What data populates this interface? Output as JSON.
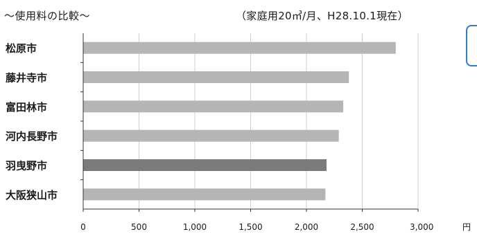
{
  "chart_data": {
    "type": "bar",
    "orientation": "horizontal",
    "title": "〜使用料の比較〜",
    "subtitle": "（家庭用20㎥/月、H28.10.1現在）",
    "categories": [
      "松原市",
      "藤井寺市",
      "富田林市",
      "河内長野市",
      "羽曳野市",
      "大阪狭山市"
    ],
    "values": [
      2800,
      2380,
      2330,
      2290,
      2180,
      2170
    ],
    "highlight_category": "羽曳野市",
    "xlim": [
      0,
      3000
    ],
    "xticks": [
      0,
      500,
      1000,
      1500,
      2000,
      2500,
      3000
    ],
    "xtick_labels": [
      "0",
      "500",
      "1,000",
      "1,500",
      "2,000",
      "2,500",
      "3,000"
    ],
    "xunit": "円",
    "grid": "vertical",
    "colors": {
      "bar": "#b5b5b5",
      "highlight": "#7b7b7b",
      "grid": "#cfcfcf",
      "axis": "#333333"
    }
  }
}
